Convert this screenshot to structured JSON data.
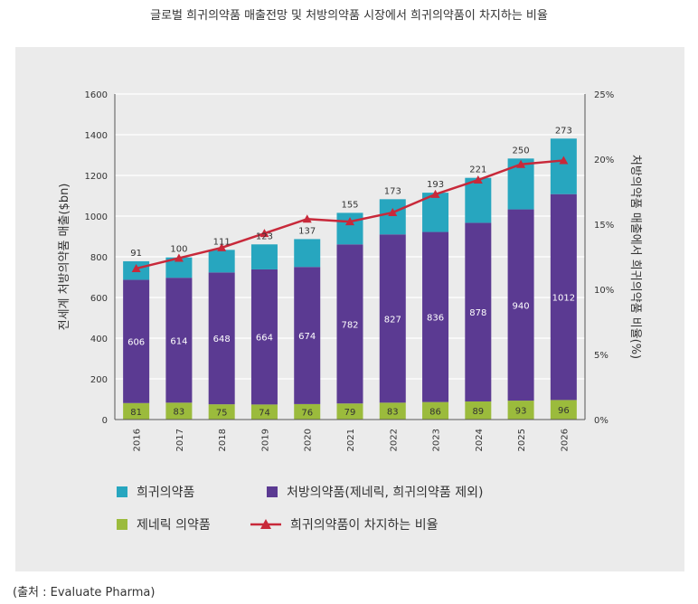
{
  "title": "글로벌 희귀의약품 매출전망 및 처방의약품 시장에서 희귀의약품이 차지하는 비율",
  "source": "(출처 : Evaluate Pharma)",
  "chart_data": {
    "type": "bar",
    "stacked": true,
    "categories": [
      "2016",
      "2017",
      "2018",
      "2019",
      "2020",
      "2021",
      "2022",
      "2023",
      "2024",
      "2025",
      "2026"
    ],
    "series": [
      {
        "name": "제네릭 의약품",
        "color": "#9bbb3c",
        "values": [
          81,
          83,
          75,
          74,
          76,
          79,
          83,
          86,
          89,
          93,
          96
        ]
      },
      {
        "name": "처방의약품(제네릭, 희귀의약품 제외)",
        "color": "#5b3a92",
        "values": [
          606,
          614,
          648,
          664,
          674,
          782,
          827,
          836,
          878,
          940,
          1012
        ]
      },
      {
        "name": "희귀의약품",
        "color": "#27a6bf",
        "values": [
          91,
          100,
          111,
          123,
          137,
          155,
          173,
          193,
          221,
          250,
          273
        ]
      }
    ],
    "line_series": {
      "name": "희귀의약품이 차지하는 비율",
      "color": "#c8293a",
      "axis": "right",
      "values": [
        11.6,
        12.4,
        13.2,
        14.3,
        15.4,
        15.2,
        15.9,
        17.3,
        18.4,
        19.6,
        19.9
      ]
    },
    "ylabel": "전세계 처방의약품 매출($bn)",
    "ylabel_right": "처방의약품 매출에서 희귀의약품 비율(%)",
    "ylim": [
      0,
      1600
    ],
    "yticks": [
      "0",
      "200",
      "400",
      "600",
      "800",
      "1000",
      "1200",
      "1400",
      "1600"
    ],
    "ylim_right": [
      0,
      25
    ],
    "yticks_right": [
      "0%",
      "5%",
      "10%",
      "15%",
      "20%",
      "25%"
    ],
    "grid": true,
    "legend": [
      {
        "label": "희귀의약품",
        "kind": "box",
        "color": "#27a6bf"
      },
      {
        "label": "처방의약품(제네릭, 희귀의약품 제외)",
        "kind": "box",
        "color": "#5b3a92"
      },
      {
        "label": "제네릭 의약품",
        "kind": "box",
        "color": "#9bbb3c"
      },
      {
        "label": "희귀의약품이 차지하는 비율",
        "kind": "line",
        "color": "#c8293a"
      }
    ],
    "legend_position": "bottom"
  }
}
